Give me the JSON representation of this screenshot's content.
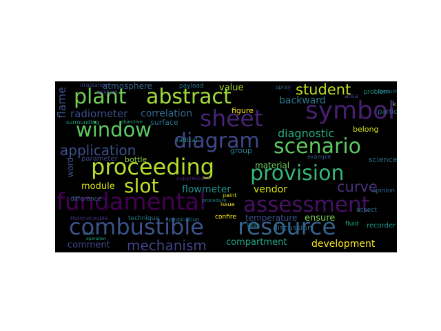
{
  "wordcloud": {
    "background": "#000000",
    "words": [
      {
        "text": "fundamental",
        "color": "#440154"
      },
      {
        "text": "assessment",
        "color": "#471164"
      },
      {
        "text": "combustible",
        "color": "#3b528b"
      },
      {
        "text": "resource",
        "color": "#33638d"
      },
      {
        "text": "proceeding",
        "color": "#b5de2b"
      },
      {
        "text": "plant",
        "color": "#73d055"
      },
      {
        "text": "abstract",
        "color": "#a0da39"
      },
      {
        "text": "symbol",
        "color": "#481f70"
      },
      {
        "text": "sheet",
        "color": "#482475"
      },
      {
        "text": "window",
        "color": "#5ec962"
      },
      {
        "text": "diagram",
        "color": "#3e4989"
      },
      {
        "text": "scenario",
        "color": "#5ec962"
      },
      {
        "text": "provision",
        "color": "#35b779"
      },
      {
        "text": "slot",
        "color": "#c2df23"
      },
      {
        "text": "application",
        "color": "#3b528b"
      },
      {
        "text": "mechanism",
        "color": "#414487"
      },
      {
        "text": "student",
        "color": "#bddf26"
      },
      {
        "text": "curve",
        "color": "#46337e"
      },
      {
        "text": "diagnostic",
        "color": "#29af7f"
      },
      {
        "text": "value",
        "color": "#a5db36"
      },
      {
        "text": "flame",
        "color": "#3b528b"
      },
      {
        "text": "radiometer",
        "color": "#3b528b"
      },
      {
        "text": "correlation",
        "color": "#31688e"
      },
      {
        "text": "backward",
        "color": "#2a788e"
      },
      {
        "text": "flowmeter",
        "color": "#21918c"
      },
      {
        "text": "vendor",
        "color": "#d8e219"
      },
      {
        "text": "development",
        "color": "#fde725"
      },
      {
        "text": "compartment",
        "color": "#22a884"
      },
      {
        "text": "temperature",
        "color": "#3b528b"
      },
      {
        "text": "ensure",
        "color": "#7ad151"
      },
      {
        "text": "comment",
        "color": "#404688"
      },
      {
        "text": "module",
        "color": "#dde318"
      },
      {
        "text": "material",
        "color": "#6ece58"
      },
      {
        "text": "atmosphere",
        "color": "#33638d"
      },
      {
        "text": "surface",
        "color": "#2c728e"
      },
      {
        "text": "figure",
        "color": "#fde725"
      },
      {
        "text": "group",
        "color": "#26828e"
      },
      {
        "text": "word",
        "color": "#3b528b"
      },
      {
        "text": "discussion",
        "color": "#31688e"
      },
      {
        "text": "bottle",
        "color": "#93d741"
      },
      {
        "text": "parameter",
        "color": "#3e4989"
      },
      {
        "text": "belong",
        "color": "#d8e219"
      },
      {
        "text": "science",
        "color": "#2c728e"
      },
      {
        "text": "problem",
        "color": "#1f9e89"
      },
      {
        "text": "recorder",
        "color": "#20928c"
      },
      {
        "text": "technique",
        "color": "#26828e"
      },
      {
        "text": "combination",
        "color": "#2a788e"
      },
      {
        "text": "confire",
        "color": "#fde725"
      },
      {
        "text": "difference",
        "color": "#31688e"
      },
      {
        "text": "thennocouple",
        "color": "#46337e"
      },
      {
        "text": "irradiance",
        "color": "#3e4989"
      },
      {
        "text": "surrounding",
        "color": "#22a884"
      },
      {
        "text": "mixture",
        "color": "#3e4989"
      },
      {
        "text": "payload",
        "color": "#2a788e"
      },
      {
        "text": "radical",
        "color": "#21918c"
      },
      {
        "text": "spray",
        "color": "#33638d"
      },
      {
        "text": "area",
        "color": "#3e4989"
      },
      {
        "text": "example",
        "color": "#3b528b"
      },
      {
        "text": "opinion",
        "color": "#31688e"
      },
      {
        "text": "aspect",
        "color": "#2a788e"
      },
      {
        "text": "fluid",
        "color": "#22a884"
      },
      {
        "text": "issue",
        "color": "#fde725"
      },
      {
        "text": "paint",
        "color": "#dde318"
      },
      {
        "text": "seen",
        "color": "#26828e"
      },
      {
        "text": "wire",
        "color": "#31688e"
      },
      {
        "text": "objective",
        "color": "#29af7f"
      },
      {
        "text": "particle",
        "color": "#31688e"
      },
      {
        "text": "procedure",
        "color": "#26828e"
      },
      {
        "text": "operation",
        "color": "#22a884"
      },
      {
        "text": "become",
        "color": "#2c728e"
      },
      {
        "text": "suppressant",
        "color": "#482475"
      },
      {
        "text": "kinetic",
        "color": "#5ec962"
      }
    ]
  }
}
